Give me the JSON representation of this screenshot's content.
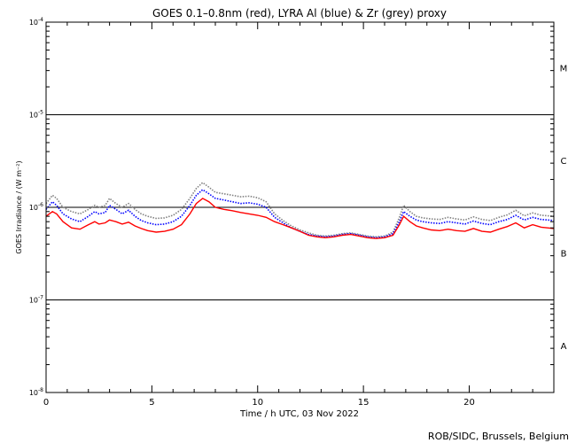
{
  "chart_data": {
    "type": "line",
    "title": "GOES 0.1–0.8nm (red), LYRA Al (blue) & Zr (grey) proxy",
    "xlabel": "Time / h UTC, 03 Nov 2022",
    "ylabel": "GOES Irradiance / (W m⁻²)",
    "xlim": [
      0,
      24
    ],
    "ylim": [
      1e-08,
      0.0001
    ],
    "yscale": "log",
    "x_ticks": [
      0,
      5,
      10,
      15,
      20
    ],
    "y_ticks": [
      {
        "value": 1e-08,
        "base": "10",
        "exp": "-8"
      },
      {
        "value": 1e-07,
        "base": "10",
        "exp": "-7"
      },
      {
        "value": 1e-06,
        "base": "10",
        "exp": "-6"
      },
      {
        "value": 1e-05,
        "base": "10",
        "exp": "-5"
      },
      {
        "value": 0.0001,
        "base": "10",
        "exp": "-4"
      }
    ],
    "threshold_lines": [
      1e-07,
      1e-06,
      1e-05
    ],
    "flare_classes": [
      {
        "label": "A",
        "value": 3.2e-08
      },
      {
        "label": "B",
        "value": 3.2e-07
      },
      {
        "label": "C",
        "value": 3.2e-06
      },
      {
        "label": "M",
        "value": 3.2e-05
      }
    ],
    "credit": "ROB/SIDC, Brussels, Belgium",
    "colors": {
      "goes": "#ff0000",
      "lyra_al": "#0000ff",
      "lyra_zr": "#808080"
    },
    "series": [
      {
        "name": "GOES",
        "color": "#ff0000",
        "x": [
          0,
          0.3,
          0.5,
          0.8,
          1.2,
          1.6,
          2.0,
          2.3,
          2.5,
          2.8,
          3.0,
          3.3,
          3.6,
          3.9,
          4.2,
          4.5,
          4.8,
          5.2,
          5.6,
          6.0,
          6.4,
          6.8,
          7.1,
          7.4,
          7.7,
          8.0,
          8.4,
          8.8,
          9.2,
          9.6,
          10.0,
          10.4,
          10.8,
          11.2,
          11.6,
          12.0,
          12.4,
          12.8,
          13.2,
          13.6,
          14.0,
          14.4,
          14.8,
          15.2,
          15.6,
          16.0,
          16.4,
          16.7,
          16.9,
          17.2,
          17.5,
          17.8,
          18.2,
          18.6,
          19.0,
          19.4,
          19.8,
          20.2,
          20.6,
          21.0,
          21.4,
          21.8,
          22.2,
          22.6,
          23.0,
          23.4,
          24.0
        ],
        "y": [
          8e-07,
          9e-07,
          8.5e-07,
          7e-07,
          6e-07,
          5.8e-07,
          6.5e-07,
          7e-07,
          6.6e-07,
          6.8e-07,
          7.3e-07,
          7e-07,
          6.6e-07,
          6.9e-07,
          6.3e-07,
          5.9e-07,
          5.6e-07,
          5.4e-07,
          5.5e-07,
          5.8e-07,
          6.5e-07,
          8.5e-07,
          1.1e-06,
          1.25e-06,
          1.15e-06,
          1e-06,
          9.5e-07,
          9.2e-07,
          8.8e-07,
          8.5e-07,
          8.2e-07,
          7.8e-07,
          7e-07,
          6.5e-07,
          6e-07,
          5.5e-07,
          5e-07,
          4.8e-07,
          4.7e-07,
          4.8e-07,
          5e-07,
          5.1e-07,
          4.9e-07,
          4.7e-07,
          4.6e-07,
          4.7e-07,
          5e-07,
          6.5e-07,
          8e-07,
          7e-07,
          6.3e-07,
          6e-07,
          5.7e-07,
          5.6e-07,
          5.8e-07,
          5.6e-07,
          5.5e-07,
          5.9e-07,
          5.5e-07,
          5.4e-07,
          5.8e-07,
          6.2e-07,
          6.8e-07,
          6e-07,
          6.5e-07,
          6.1e-07,
          5.9e-07
        ]
      },
      {
        "name": "LYRA Al",
        "color": "#0000ff",
        "x": [
          0,
          0.3,
          0.5,
          0.8,
          1.2,
          1.6,
          2.0,
          2.3,
          2.5,
          2.8,
          3.0,
          3.3,
          3.6,
          3.9,
          4.2,
          4.5,
          4.8,
          5.2,
          5.6,
          6.0,
          6.4,
          6.8,
          7.1,
          7.4,
          7.7,
          8.0,
          8.4,
          8.8,
          9.2,
          9.6,
          10.0,
          10.4,
          10.8,
          11.2,
          11.6,
          12.0,
          12.4,
          12.8,
          13.2,
          13.6,
          14.0,
          14.4,
          14.8,
          15.2,
          15.6,
          16.0,
          16.4,
          16.7,
          16.9,
          17.2,
          17.5,
          17.8,
          18.2,
          18.6,
          19.0,
          19.4,
          19.8,
          20.2,
          20.6,
          21.0,
          21.4,
          21.8,
          22.2,
          22.6,
          23.0,
          23.4,
          24.0
        ],
        "y": [
          9.5e-07,
          1.15e-06,
          1.05e-06,
          8.5e-07,
          7.5e-07,
          7e-07,
          8e-07,
          9e-07,
          8.5e-07,
          8.8e-07,
          1.05e-06,
          9.5e-07,
          8.5e-07,
          9.3e-07,
          8e-07,
          7.2e-07,
          6.8e-07,
          6.5e-07,
          6.6e-07,
          7e-07,
          8e-07,
          1.05e-06,
          1.35e-06,
          1.55e-06,
          1.4e-06,
          1.25e-06,
          1.2e-06,
          1.15e-06,
          1.1e-06,
          1.12e-06,
          1.08e-06,
          1e-06,
          7.8e-07,
          6.8e-07,
          6e-07,
          5.5e-07,
          5.1e-07,
          4.9e-07,
          4.8e-07,
          4.9e-07,
          5.1e-07,
          5.2e-07,
          5e-07,
          4.8e-07,
          4.7e-07,
          4.8e-07,
          5.2e-07,
          7e-07,
          9e-07,
          8e-07,
          7.3e-07,
          7e-07,
          6.8e-07,
          6.7e-07,
          7e-07,
          6.8e-07,
          6.6e-07,
          7.1e-07,
          6.7e-07,
          6.5e-07,
          7e-07,
          7.4e-07,
          8.2e-07,
          7.3e-07,
          7.8e-07,
          7.4e-07,
          7.2e-07
        ]
      },
      {
        "name": "LYRA Zr",
        "color": "#808080",
        "x": [
          0,
          0.3,
          0.5,
          0.8,
          1.2,
          1.6,
          2.0,
          2.3,
          2.5,
          2.8,
          3.0,
          3.3,
          3.6,
          3.9,
          4.2,
          4.5,
          4.8,
          5.2,
          5.6,
          6.0,
          6.4,
          6.8,
          7.1,
          7.4,
          7.7,
          8.0,
          8.4,
          8.8,
          9.2,
          9.6,
          10.0,
          10.4,
          10.8,
          11.2,
          11.6,
          12.0,
          12.4,
          12.8,
          13.2,
          13.6,
          14.0,
          14.4,
          14.8,
          15.2,
          15.6,
          16.0,
          16.4,
          16.7,
          16.9,
          17.2,
          17.5,
          17.8,
          18.2,
          18.6,
          19.0,
          19.4,
          19.8,
          20.2,
          20.6,
          21.0,
          21.4,
          21.8,
          22.2,
          22.6,
          23.0,
          23.4,
          24.0
        ],
        "y": [
          1.1e-06,
          1.35e-06,
          1.25e-06,
          1e-06,
          9e-07,
          8.5e-07,
          9.5e-07,
          1.05e-06,
          1e-06,
          1.05e-06,
          1.25e-06,
          1.1e-06,
          1e-06,
          1.1e-06,
          9.5e-07,
          8.5e-07,
          8e-07,
          7.6e-07,
          7.7e-07,
          8.2e-07,
          9.5e-07,
          1.25e-06,
          1.6e-06,
          1.85e-06,
          1.65e-06,
          1.45e-06,
          1.4e-06,
          1.35e-06,
          1.3e-06,
          1.32e-06,
          1.27e-06,
          1.15e-06,
          8.5e-07,
          7.2e-07,
          6.3e-07,
          5.7e-07,
          5.3e-07,
          5e-07,
          4.9e-07,
          5e-07,
          5.2e-07,
          5.3e-07,
          5.1e-07,
          4.9e-07,
          4.8e-07,
          4.9e-07,
          5.4e-07,
          7.8e-07,
          1.05e-06,
          9e-07,
          8e-07,
          7.7e-07,
          7.5e-07,
          7.4e-07,
          7.8e-07,
          7.5e-07,
          7.3e-07,
          7.9e-07,
          7.4e-07,
          7.2e-07,
          7.8e-07,
          8.3e-07,
          9.3e-07,
          8.1e-07,
          8.7e-07,
          8.2e-07,
          8e-07
        ]
      }
    ]
  }
}
